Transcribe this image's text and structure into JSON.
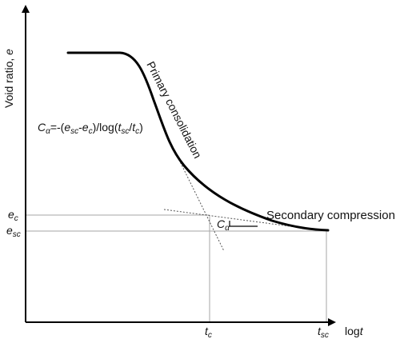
{
  "axes": {
    "y_label_main": "Void ratio, ",
    "y_label_symbol": "e",
    "x_label_main": "log",
    "x_label_symbol": "t"
  },
  "curve_labels": {
    "primary": "Primary consolidation",
    "secondary": "Secondary compression"
  },
  "markers": {
    "ec": {
      "base": "e",
      "sub": "c"
    },
    "esc": {
      "base": "e",
      "sub": "sc"
    },
    "tc": {
      "base": "t",
      "sub": "c"
    },
    "tsc": {
      "base": "t",
      "sub": "sc"
    },
    "calpha": {
      "base": "C",
      "sub": "α"
    }
  },
  "formula": {
    "lhs": "C",
    "lhs_sub": "α",
    "eq": "=-(",
    "e1": "e",
    "e1_sub": "sc",
    "minus": "-",
    "e2": "e",
    "e2_sub": "c",
    "mid": ")/log(",
    "t1": "t",
    "t1_sub": "sc",
    "slash": "/",
    "t2": "t",
    "t2_sub": "c",
    "end": ")"
  },
  "colors": {
    "curve": "#000000",
    "axis": "#000000",
    "guide": "#a6a6a6",
    "tangent": "#555555"
  }
}
